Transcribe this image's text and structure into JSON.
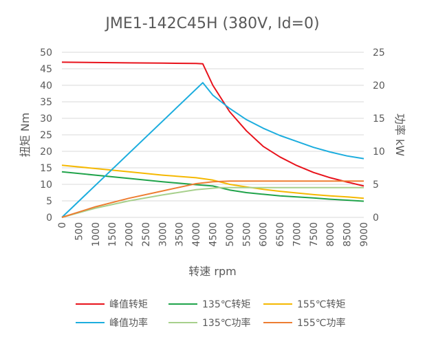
{
  "chart_data": {
    "type": "line",
    "title": "JME1-142C45H (380V, Id=0)",
    "xlabel": "转速 rpm",
    "ylabel_left": "扭矩 Nm",
    "ylabel_right": "功率 kW",
    "xlim": [
      0,
      9000
    ],
    "ylim_left": [
      0,
      50
    ],
    "ylim_right": [
      0,
      25
    ],
    "x_ticks": [
      "0",
      "500",
      "1000",
      "1500",
      "2000",
      "2500",
      "3000",
      "3500",
      "4000",
      "4500",
      "5000",
      "5500",
      "6000",
      "6500",
      "7000",
      "7500",
      "8000",
      "8500",
      "9000"
    ],
    "y_left_ticks": [
      "0",
      "5",
      "10",
      "15",
      "20",
      "25",
      "30",
      "35",
      "40",
      "45",
      "50"
    ],
    "y_right_ticks": [
      "0",
      "5",
      "10",
      "15",
      "20",
      "25"
    ],
    "grid": true,
    "legend_position": "bottom",
    "series": [
      {
        "name": "峰值转矩",
        "axis": "left",
        "color": "#e8121b",
        "points": [
          [
            0,
            47
          ],
          [
            1000,
            46.9
          ],
          [
            2000,
            46.8
          ],
          [
            3000,
            46.7
          ],
          [
            4000,
            46.6
          ],
          [
            4200,
            46.5
          ],
          [
            4500,
            40
          ],
          [
            5000,
            32
          ],
          [
            5500,
            26.2
          ],
          [
            6000,
            21.5
          ],
          [
            6500,
            18.3
          ],
          [
            7000,
            15.7
          ],
          [
            7500,
            13.6
          ],
          [
            8000,
            12.0
          ],
          [
            8500,
            10.7
          ],
          [
            9000,
            9.5
          ]
        ]
      },
      {
        "name": "135℃转矩",
        "axis": "left",
        "color": "#1fa34a",
        "points": [
          [
            0,
            13.8
          ],
          [
            1000,
            12.8
          ],
          [
            2000,
            11.8
          ],
          [
            3000,
            10.8
          ],
          [
            4000,
            9.9
          ],
          [
            4500,
            9.5
          ],
          [
            5000,
            8.3
          ],
          [
            5500,
            7.5
          ],
          [
            6000,
            7.0
          ],
          [
            6500,
            6.5
          ],
          [
            7000,
            6.2
          ],
          [
            7500,
            5.9
          ],
          [
            8000,
            5.5
          ],
          [
            8500,
            5.2
          ],
          [
            9000,
            4.9
          ]
        ]
      },
      {
        "name": "155℃转矩",
        "axis": "left",
        "color": "#f5b800",
        "points": [
          [
            0,
            15.8
          ],
          [
            1000,
            14.8
          ],
          [
            2000,
            13.8
          ],
          [
            3000,
            12.8
          ],
          [
            4000,
            12.0
          ],
          [
            4500,
            11.3
          ],
          [
            5000,
            10.0
          ],
          [
            5500,
            9.2
          ],
          [
            6000,
            8.5
          ],
          [
            6500,
            7.9
          ],
          [
            7000,
            7.4
          ],
          [
            7500,
            6.9
          ],
          [
            8000,
            6.5
          ],
          [
            8500,
            6.2
          ],
          [
            9000,
            5.8
          ]
        ]
      },
      {
        "name": "峰值功率",
        "axis": "right",
        "color": "#1cadde",
        "points": [
          [
            0,
            0
          ],
          [
            4200,
            20.4
          ],
          [
            4500,
            18.5
          ],
          [
            5000,
            16.5
          ],
          [
            5500,
            14.8
          ],
          [
            6000,
            13.5
          ],
          [
            6500,
            12.4
          ],
          [
            7000,
            11.5
          ],
          [
            7500,
            10.6
          ],
          [
            8000,
            9.9
          ],
          [
            8500,
            9.3
          ],
          [
            9000,
            8.9
          ]
        ]
      },
      {
        "name": "135℃功率",
        "axis": "right",
        "color": "#a7d08c",
        "points": [
          [
            0,
            0
          ],
          [
            1000,
            1.4
          ],
          [
            2000,
            2.5
          ],
          [
            3000,
            3.4
          ],
          [
            4000,
            4.2
          ],
          [
            4700,
            4.5
          ],
          [
            5000,
            4.5
          ],
          [
            6000,
            4.5
          ],
          [
            7000,
            4.5
          ],
          [
            8000,
            4.5
          ],
          [
            9000,
            4.5
          ]
        ]
      },
      {
        "name": "155℃功率",
        "axis": "right",
        "color": "#ed7d31",
        "points": [
          [
            0,
            0
          ],
          [
            1000,
            1.6
          ],
          [
            2000,
            2.9
          ],
          [
            3000,
            4.0
          ],
          [
            4000,
            5.1
          ],
          [
            4500,
            5.4
          ],
          [
            5000,
            5.5
          ],
          [
            6000,
            5.5
          ],
          [
            7000,
            5.5
          ],
          [
            8000,
            5.5
          ],
          [
            9000,
            5.5
          ]
        ]
      }
    ]
  }
}
